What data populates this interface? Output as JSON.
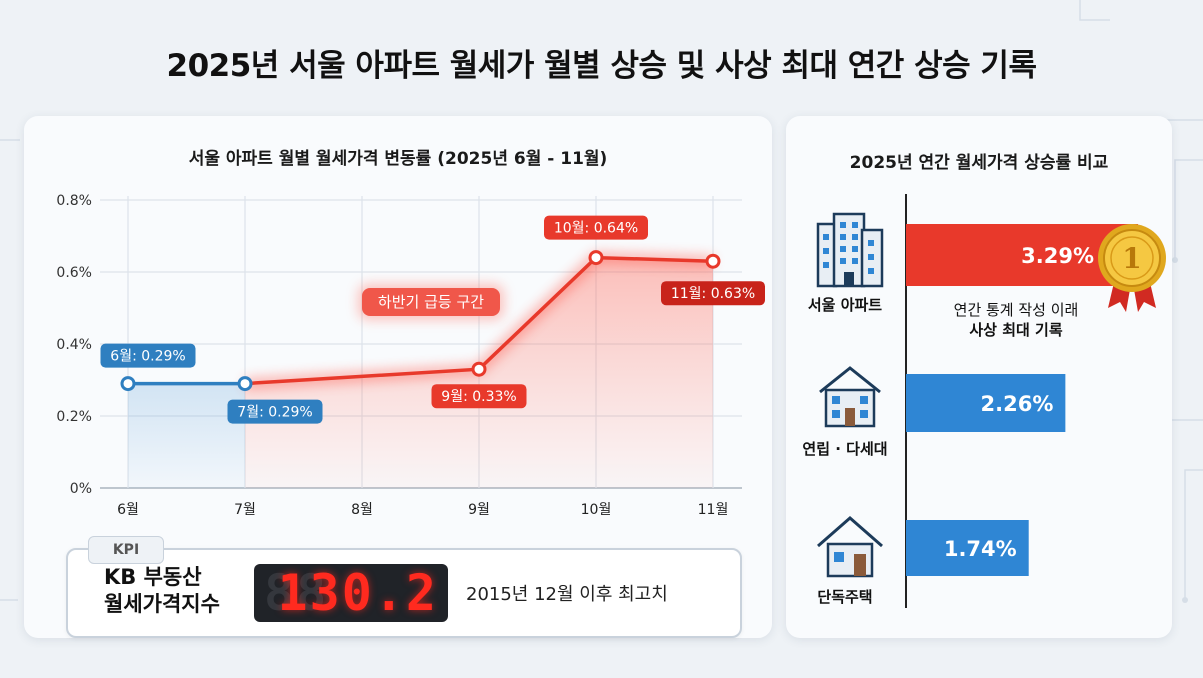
{
  "main_title": "2025년 서울 아파트 월세가 월별 상승 및 사상 최대 연간 상승 기록",
  "chart_data": [
    {
      "type": "line",
      "title": "서울 아파트 월별 월세가격 변동률 (2025년 6월 - 11월)",
      "x": [
        "6월",
        "7월",
        "8월",
        "9월",
        "10월",
        "11월"
      ],
      "y_ticks": [
        "0%",
        "0.2%",
        "0.4%",
        "0.6%",
        "0.8%"
      ],
      "ylim": [
        0,
        0.8
      ],
      "series": [
        {
          "x": "6월",
          "value": 0.29,
          "label": "6월: 0.29%",
          "color": "#2f7fc0"
        },
        {
          "x": "7월",
          "value": 0.29,
          "label": "7월: 0.29%",
          "color": "#2f7fc0"
        },
        {
          "x": "9월",
          "value": 0.33,
          "label": "9월: 0.33%",
          "color": "#e8392b"
        },
        {
          "x": "10월",
          "value": 0.64,
          "label": "10월: 0.64%",
          "color": "#e8392b"
        },
        {
          "x": "11월",
          "value": 0.63,
          "label": "11월: 0.63%",
          "color": "#e8392b"
        }
      ],
      "annotation": "하반기 급등 구간",
      "grid": true
    },
    {
      "type": "bar",
      "title": "2025년 연간 월세가격 상승률 비교",
      "categories": [
        "서울 아파트",
        "연립 · 다세대",
        "단독주택"
      ],
      "values": [
        3.29,
        2.26,
        1.74
      ],
      "value_labels": [
        "3.29%",
        "2.26%",
        "1.74%"
      ],
      "colors": [
        "#e8392b",
        "#2f86d4",
        "#2f86d4"
      ],
      "badge": "1",
      "note_lines": [
        "연간 통계 작성 이래",
        "사상 최대 기록"
      ]
    }
  ],
  "kpi": {
    "tag": "KPI",
    "label_line1": "KB 부동산",
    "label_line2": "월세가격지수",
    "ghost_digits": "8",
    "value": "130.2",
    "note": "2015년 12월 이후 최고치"
  }
}
